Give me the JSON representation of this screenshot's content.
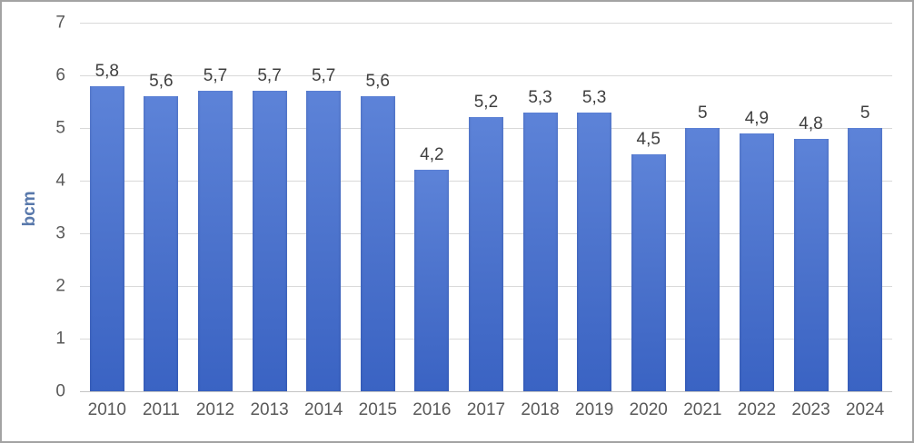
{
  "chart_data": {
    "type": "bar",
    "title": "",
    "xlabel": "",
    "ylabel": "bcm",
    "ylim": [
      0,
      7
    ],
    "yticks": [
      0,
      1,
      2,
      3,
      4,
      5,
      6,
      7
    ],
    "grid": true,
    "legend": false,
    "categories": [
      "2010",
      "2011",
      "2012",
      "2013",
      "2014",
      "2015",
      "2016",
      "2017",
      "2018",
      "2019",
      "2020",
      "2021",
      "2022",
      "2023",
      "2024"
    ],
    "values": [
      5.8,
      5.6,
      5.7,
      5.7,
      5.7,
      5.6,
      4.2,
      5.2,
      5.3,
      5.3,
      4.5,
      5,
      4.9,
      4.8,
      5
    ],
    "value_labels": [
      "5,8",
      "5,6",
      "5,7",
      "5,7",
      "5,7",
      "5,6",
      "4,2",
      "5,2",
      "5,3",
      "5,3",
      "4,5",
      "5",
      "4,9",
      "4,8",
      "5"
    ]
  },
  "style": {
    "bar_gradient_top": "#5d83d8",
    "bar_gradient_mid": "#4a71cb",
    "bar_gradient_bottom": "#3a63c3",
    "gridline_color": "#d9d9d9",
    "axis_line_color": "#c4c4c4",
    "tick_label_color": "#595959",
    "value_label_color": "#3f3f3f",
    "ylabel_color": "#5878ab",
    "frame_border_color": "#a3a3a3",
    "background": "#ffffff"
  }
}
